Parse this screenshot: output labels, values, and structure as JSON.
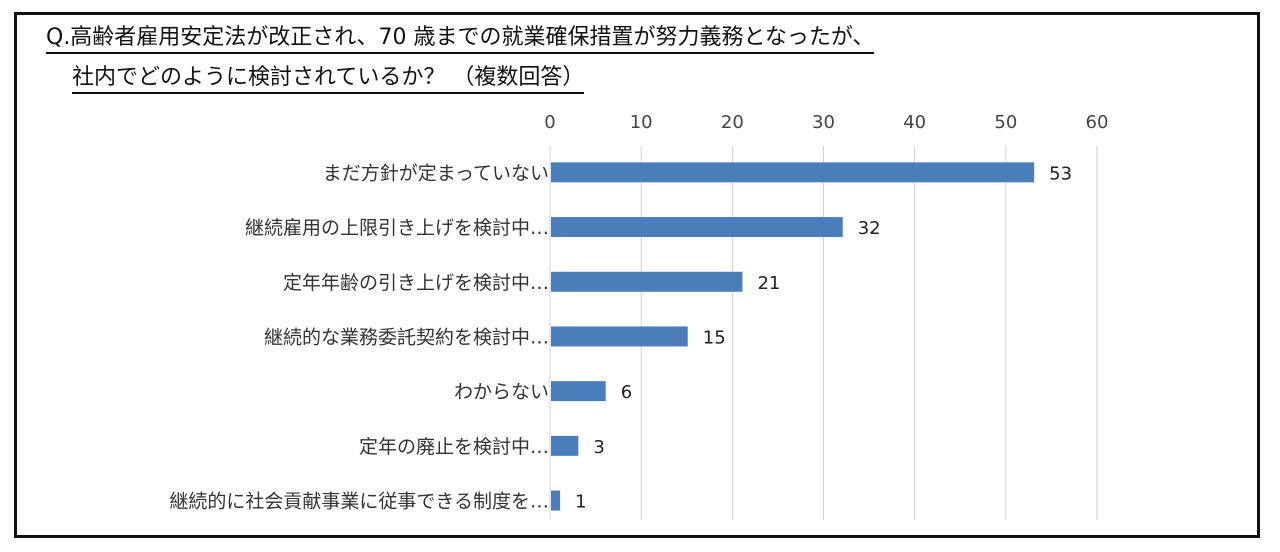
{
  "chart_data": {
    "type": "bar",
    "orientation": "horizontal",
    "title_line1": "Q.高齢者雇用安定法が改正され、70 歳までの就業確保措置が努力義務となったが、",
    "title_line2": "社内でどのように検討されているか？ （複数回答）",
    "categories": [
      "まだ方針が定まっていない",
      "継続雇用の上限引き上げを検討中…",
      "定年年齢の引き上げを検討中…",
      "継続的な業務委託契約を検討中…",
      "わからない",
      "定年の廃止を検討中…",
      "継続的に社会貢献事業に従事できる制度を…"
    ],
    "values": [
      53,
      32,
      21,
      15,
      6,
      3,
      1
    ],
    "xlim": [
      0,
      60
    ],
    "xticks": [
      0,
      10,
      20,
      30,
      40,
      50,
      60
    ],
    "grid": true,
    "bar_color": "#4a7ebb",
    "grid_color": "#d0d0d0"
  }
}
